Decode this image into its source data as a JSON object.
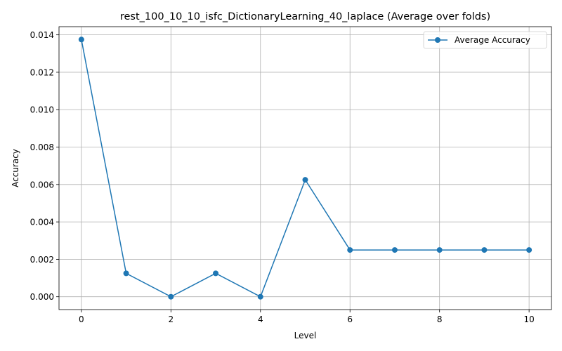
{
  "chart_data": {
    "type": "line",
    "title": "rest_100_10_10_isfc_DictionaryLearning_40_laplace (Average over folds)",
    "xlabel": "Level",
    "ylabel": "Accuracy",
    "xlim": [
      -0.5,
      10.5
    ],
    "ylim": [
      -0.000687,
      0.014437
    ],
    "xticks": [
      0,
      2,
      4,
      6,
      8,
      10
    ],
    "xtick_labels": [
      "0",
      "2",
      "4",
      "6",
      "8",
      "10"
    ],
    "yticks": [
      0.0,
      0.002,
      0.004,
      0.006,
      0.008,
      0.01,
      0.012,
      0.014
    ],
    "ytick_labels": [
      "0.000",
      "0.002",
      "0.004",
      "0.006",
      "0.008",
      "0.010",
      "0.012",
      "0.014"
    ],
    "grid": true,
    "legend_position": "top-right",
    "x": [
      0,
      1,
      2,
      3,
      4,
      5,
      6,
      7,
      8,
      9,
      10
    ],
    "series": [
      {
        "name": "Average Accuracy",
        "color": "#1f77b4",
        "marker": "circle",
        "values": [
          0.01375,
          0.00125,
          0.0,
          0.00125,
          0.0,
          0.00625,
          0.0025,
          0.0025,
          0.0025,
          0.0025,
          0.0025
        ]
      }
    ]
  }
}
